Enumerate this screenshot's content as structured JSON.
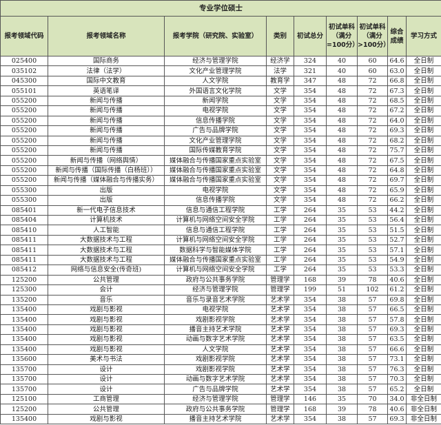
{
  "title": "专业学位硕士",
  "colors": {
    "header_bg": "#d8e4bc",
    "border": "#555555"
  },
  "columns": [
    "报考领域代码",
    "报考领域名称",
    "报考学院（研究院、实验室）",
    "类别",
    "初试总分",
    "初试单科（满分=100分）",
    "初试单科（满分>100分）",
    "综合成绩",
    "学习方式"
  ],
  "rows": [
    [
      "025400",
      "国际商务",
      "经济与管理学院",
      "经济学",
      "324",
      "40",
      "60",
      "64.6",
      "全日制"
    ],
    [
      "035102",
      "法律（法学）",
      "文化产业管理学院",
      "法学",
      "321",
      "40",
      "60",
      "63.0",
      "全日制"
    ],
    [
      "045300",
      "国际中文教育",
      "人文学院",
      "教育学",
      "347",
      "48",
      "72",
      "66.8",
      "全日制"
    ],
    [
      "055101",
      "英语笔译",
      "外国语言文化学院",
      "文学",
      "354",
      "48",
      "72",
      "67.3",
      "全日制"
    ],
    [
      "055200",
      "新闻与传播",
      "新闻学院",
      "文学",
      "354",
      "48",
      "72",
      "68.5",
      "全日制"
    ],
    [
      "055200",
      "新闻与传播",
      "电视学院",
      "文学",
      "354",
      "48",
      "72",
      "67.2",
      "全日制"
    ],
    [
      "055200",
      "新闻与传播",
      "信息传播学院",
      "文学",
      "354",
      "48",
      "72",
      "64.0",
      "全日制"
    ],
    [
      "055200",
      "新闻与传播",
      "广告与品牌学院",
      "文学",
      "354",
      "48",
      "72",
      "69.3",
      "全日制"
    ],
    [
      "055200",
      "新闻与传播",
      "文化产业管理学院",
      "文学",
      "354",
      "48",
      "72",
      "68.2",
      "全日制"
    ],
    [
      "055200",
      "新闻与传播",
      "国际传媒教育学院",
      "文学",
      "354",
      "48",
      "72",
      "75.7",
      "全日制"
    ],
    [
      "055200",
      "新闻与传播（网络舆情）",
      "媒体融合与传播国家重点实验室",
      "文学",
      "354",
      "48",
      "72",
      "67.5",
      "全日制"
    ],
    [
      "055200",
      "新闻与传播（国际传播（白杨班））",
      "媒体融合与传播国家重点实验室",
      "文学",
      "354",
      "48",
      "72",
      "64.8",
      "全日制"
    ],
    [
      "055200",
      "新闻与传播（媒体融合与传播实务）",
      "媒体融合与传播国家重点实验室",
      "文学",
      "354",
      "48",
      "72",
      "69.7",
      "全日制"
    ],
    [
      "055300",
      "出版",
      "电视学院",
      "文学",
      "354",
      "48",
      "72",
      "65.9",
      "全日制"
    ],
    [
      "055300",
      "出版",
      "信息传播学院",
      "文学",
      "354",
      "48",
      "72",
      "66.2",
      "全日制"
    ],
    [
      "085401",
      "新一代电子信息技术",
      "信息与通信工程学院",
      "工学",
      "264",
      "35",
      "53",
      "44.2",
      "全日制"
    ],
    [
      "085404",
      "计算机技术",
      "计算机与网络空间安全学院",
      "工学",
      "264",
      "35",
      "53",
      "56.4",
      "全日制"
    ],
    [
      "085410",
      "人工智能",
      "信息与通信工程学院",
      "工学",
      "264",
      "35",
      "53",
      "51.5",
      "全日制"
    ],
    [
      "085411",
      "大数据技术与工程",
      "计算机与网络空间安全学院",
      "工学",
      "264",
      "35",
      "53",
      "52.7",
      "全日制"
    ],
    [
      "085411",
      "大数据技术与工程",
      "数据科学与智能媒体学院",
      "工学",
      "264",
      "35",
      "53",
      "57.1",
      "全日制"
    ],
    [
      "085411",
      "大数据技术与工程",
      "媒体融合与传播国家重点实验室",
      "工学",
      "264",
      "35",
      "53",
      "54.9",
      "全日制"
    ],
    [
      "085412",
      "网络与信息安全(传奇班)",
      "计算机与网络空间安全学院",
      "工学",
      "264",
      "35",
      "53",
      "53.3",
      "全日制"
    ],
    [
      "125200",
      "公共管理",
      "政府与公共事务学院",
      "管理学",
      "168",
      "39",
      "78",
      "40.6",
      "全日制"
    ],
    [
      "125300",
      "会计",
      "经济与管理学院",
      "管理学",
      "199",
      "51",
      "102",
      "61.2",
      "全日制"
    ],
    [
      "135200",
      "音乐",
      "音乐与录音艺术学院",
      "艺术学",
      "354",
      "38",
      "57",
      "69.8",
      "全日制"
    ],
    [
      "135400",
      "戏剧与影视",
      "电视学院",
      "艺术学",
      "354",
      "38",
      "57",
      "66.5",
      "全日制"
    ],
    [
      "135400",
      "戏剧与影视",
      "戏剧影视学院",
      "艺术学",
      "354",
      "38",
      "57",
      "57.8",
      "全日制"
    ],
    [
      "135400",
      "戏剧与影视",
      "播音主持艺术学院",
      "艺术学",
      "354",
      "38",
      "57",
      "69.3",
      "全日制"
    ],
    [
      "135400",
      "戏剧与影视",
      "动画与数字艺术学院",
      "艺术学",
      "354",
      "38",
      "57",
      "63.5",
      "全日制"
    ],
    [
      "135400",
      "戏剧与影视",
      "人文学院",
      "艺术学",
      "354",
      "38",
      "57",
      "66.6",
      "全日制"
    ],
    [
      "135600",
      "美术与书法",
      "戏剧影视学院",
      "艺术学",
      "354",
      "38",
      "57",
      "73.1",
      "全日制"
    ],
    [
      "135700",
      "设计",
      "戏剧影视学院",
      "艺术学",
      "354",
      "38",
      "57",
      "76.3",
      "全日制"
    ],
    [
      "135700",
      "设计",
      "动画与数字艺术学院",
      "艺术学",
      "354",
      "38",
      "57",
      "70.3",
      "全日制"
    ],
    [
      "135700",
      "设计",
      "广告与品牌学院",
      "艺术学",
      "354",
      "38",
      "57",
      "65.2",
      "全日制"
    ],
    [
      "125100",
      "工商管理",
      "经济与管理学院",
      "管理学",
      "146",
      "35",
      "70",
      "34.0",
      "非全日制"
    ],
    [
      "125200",
      "公共管理",
      "政府与公共事务学院",
      "管理学",
      "168",
      "39",
      "78",
      "40.6",
      "非全日制"
    ],
    [
      "135400",
      "戏剧与影视",
      "播音主持艺术学院",
      "艺术学",
      "354",
      "38",
      "57",
      "69.3",
      "非全日制"
    ]
  ]
}
